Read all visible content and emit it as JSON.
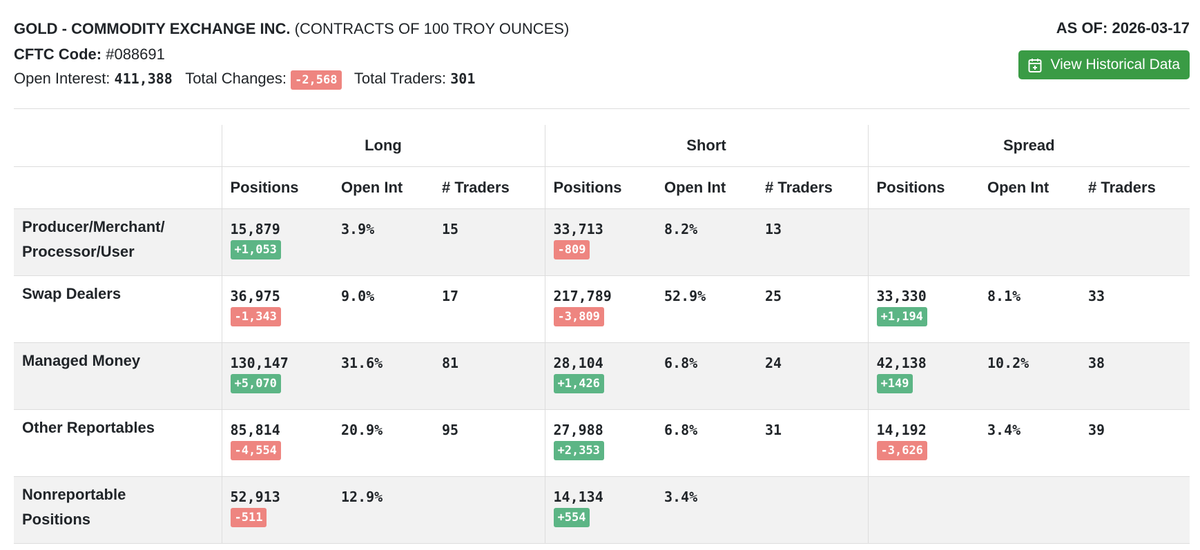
{
  "header": {
    "title": "GOLD - COMMODITY EXCHANGE INC.",
    "subtitle": "(CONTRACTS OF 100 TROY OUNCES)",
    "cftc_label": "CFTC Code:",
    "cftc_code": "#088691",
    "open_interest_label": "Open Interest:",
    "open_interest": "411,388",
    "total_changes_label": "Total Changes:",
    "total_changes": "-2,568",
    "total_traders_label": "Total Traders:",
    "total_traders": "301",
    "as_of_label": "AS OF:",
    "as_of": "2026-03-17",
    "button": "View Historical Data"
  },
  "table": {
    "groups": [
      "Long",
      "Short",
      "Spread"
    ],
    "columns": [
      "Positions",
      "Open Int",
      "# Traders"
    ],
    "rows": [
      {
        "label": [
          "Producer/Merchant/",
          "Processor/User"
        ],
        "cells": [
          {
            "positions": "15,879",
            "change": "+1,053",
            "open_int": "3.9%",
            "traders": "15"
          },
          {
            "positions": "33,713",
            "change": "-809",
            "open_int": "8.2%",
            "traders": "13"
          },
          null
        ]
      },
      {
        "label": [
          "Swap Dealers"
        ],
        "cells": [
          {
            "positions": "36,975",
            "change": "-1,343",
            "open_int": "9.0%",
            "traders": "17"
          },
          {
            "positions": "217,789",
            "change": "-3,809",
            "open_int": "52.9%",
            "traders": "25"
          },
          {
            "positions": "33,330",
            "change": "+1,194",
            "open_int": "8.1%",
            "traders": "33"
          }
        ]
      },
      {
        "label": [
          "Managed Money"
        ],
        "cells": [
          {
            "positions": "130,147",
            "change": "+5,070",
            "open_int": "31.6%",
            "traders": "81"
          },
          {
            "positions": "28,104",
            "change": "+1,426",
            "open_int": "6.8%",
            "traders": "24"
          },
          {
            "positions": "42,138",
            "change": "+149",
            "open_int": "10.2%",
            "traders": "38"
          }
        ]
      },
      {
        "label": [
          "Other Reportables"
        ],
        "cells": [
          {
            "positions": "85,814",
            "change": "-4,554",
            "open_int": "20.9%",
            "traders": "95"
          },
          {
            "positions": "27,988",
            "change": "+2,353",
            "open_int": "6.8%",
            "traders": "31"
          },
          {
            "positions": "14,192",
            "change": "-3,626",
            "open_int": "3.4%",
            "traders": "39"
          }
        ]
      },
      {
        "label": [
          "Nonreportable",
          "Positions"
        ],
        "cells": [
          {
            "positions": "52,913",
            "change": "-511",
            "open_int": "12.9%",
            "traders": null
          },
          {
            "positions": "14,134",
            "change": "+554",
            "open_int": "3.4%",
            "traders": null
          },
          null
        ]
      }
    ]
  }
}
